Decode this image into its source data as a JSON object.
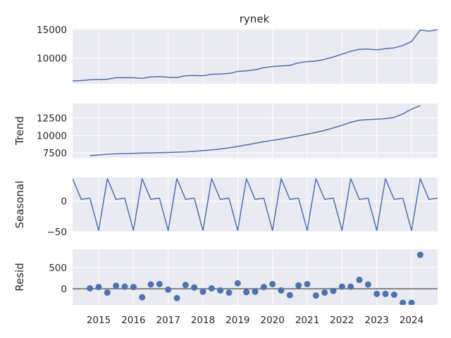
{
  "chart_data": {
    "type": "line",
    "title": "rynek",
    "x_ticks": [
      "2015",
      "2016",
      "2017",
      "2018",
      "2019",
      "2020",
      "2021",
      "2022",
      "2023",
      "2024"
    ],
    "x_range": [
      2014.25,
      2024.75
    ],
    "colors": {
      "line": "#4c72b0",
      "panel_bg": "#eaeaf2",
      "grid": "#ffffff",
      "zero_line": "#000000"
    },
    "panels": [
      {
        "key": "observed",
        "ylabel": "",
        "kind": "line",
        "ylim": [
          5550,
          15100
        ],
        "yticks": [
          10000,
          15000
        ],
        "ytick_labels": [
          "10000",
          "15000"
        ],
        "x": [
          2014.25,
          2014.5,
          2014.75,
          2015.0,
          2015.25,
          2015.5,
          2015.75,
          2016.0,
          2016.25,
          2016.5,
          2016.75,
          2017.0,
          2017.25,
          2017.5,
          2017.75,
          2018.0,
          2018.25,
          2018.5,
          2018.75,
          2019.0,
          2019.25,
          2019.5,
          2019.75,
          2020.0,
          2020.25,
          2020.5,
          2020.75,
          2021.0,
          2021.25,
          2021.5,
          2021.75,
          2022.0,
          2022.25,
          2022.5,
          2022.75,
          2023.0,
          2023.25,
          2023.5,
          2023.75,
          2024.0,
          2024.25,
          2024.5,
          2024.75
        ],
        "y": [
          6050,
          6100,
          6250,
          6300,
          6350,
          6600,
          6620,
          6600,
          6500,
          6750,
          6800,
          6700,
          6650,
          6950,
          7000,
          6950,
          7200,
          7250,
          7350,
          7700,
          7800,
          8000,
          8350,
          8550,
          8650,
          8750,
          9200,
          9400,
          9500,
          9800,
          10200,
          10700,
          11200,
          11550,
          11600,
          11450,
          11650,
          11800,
          12200,
          12900,
          14900,
          14700,
          14950
        ]
      },
      {
        "key": "trend",
        "ylabel": "Trend",
        "kind": "line",
        "ylim": [
          6800,
          14600
        ],
        "yticks": [
          7500,
          10000,
          12500
        ],
        "ytick_labels": [
          "7500",
          "10000",
          "12500"
        ],
        "x": [
          2014.75,
          2015.0,
          2015.25,
          2015.5,
          2015.75,
          2016.0,
          2016.25,
          2016.5,
          2016.75,
          2017.0,
          2017.25,
          2017.5,
          2017.75,
          2018.0,
          2018.25,
          2018.5,
          2018.75,
          2019.0,
          2019.25,
          2019.5,
          2019.75,
          2020.0,
          2020.25,
          2020.5,
          2020.75,
          2021.0,
          2021.25,
          2021.5,
          2021.75,
          2022.0,
          2022.25,
          2022.5,
          2022.75,
          2023.0,
          2023.25,
          2023.5,
          2023.75,
          2024.0,
          2024.25
        ],
        "y": [
          7100,
          7200,
          7300,
          7370,
          7400,
          7430,
          7470,
          7500,
          7530,
          7560,
          7600,
          7640,
          7730,
          7830,
          7930,
          8050,
          8230,
          8420,
          8650,
          8880,
          9100,
          9300,
          9500,
          9720,
          9950,
          10190,
          10450,
          10740,
          11090,
          11480,
          11900,
          12200,
          12300,
          12350,
          12420,
          12600,
          13100,
          13800,
          14300
        ]
      },
      {
        "key": "seasonal",
        "ylabel": "Seasonal",
        "kind": "line",
        "ylim": [
          -50,
          39
        ],
        "yticks": [
          -50,
          0
        ],
        "ytick_labels": [
          "−50",
          "0"
        ],
        "x": [
          2014.25,
          2014.5,
          2014.75,
          2015.0,
          2015.25,
          2015.5,
          2015.75,
          2016.0,
          2016.25,
          2016.5,
          2016.75,
          2017.0,
          2017.25,
          2017.5,
          2017.75,
          2018.0,
          2018.25,
          2018.5,
          2018.75,
          2019.0,
          2019.25,
          2019.5,
          2019.75,
          2020.0,
          2020.25,
          2020.5,
          2020.75,
          2021.0,
          2021.25,
          2021.5,
          2021.75,
          2022.0,
          2022.25,
          2022.5,
          2022.75,
          2023.0,
          2023.25,
          2023.5,
          2023.75,
          2024.0,
          2024.25,
          2024.5,
          2024.75
        ],
        "y": [
          37,
          3,
          5,
          -48,
          37,
          3,
          5,
          -48,
          37,
          3,
          5,
          -48,
          37,
          3,
          5,
          -48,
          37,
          3,
          5,
          -48,
          37,
          3,
          5,
          -48,
          37,
          3,
          5,
          -48,
          37,
          3,
          5,
          -48,
          37,
          3,
          5,
          -48,
          37,
          3,
          5,
          -48,
          37,
          3,
          5
        ]
      },
      {
        "key": "resid",
        "ylabel": "Resid",
        "kind": "scatter",
        "ylim": [
          -380,
          930
        ],
        "yticks": [
          0,
          500
        ],
        "ytick_labels": [
          "0",
          "500"
        ],
        "zero_line": true,
        "x": [
          2014.75,
          2015.0,
          2015.25,
          2015.5,
          2015.75,
          2016.0,
          2016.25,
          2016.5,
          2016.75,
          2017.0,
          2017.25,
          2017.5,
          2017.75,
          2018.0,
          2018.25,
          2018.5,
          2018.75,
          2019.0,
          2019.25,
          2019.5,
          2019.75,
          2020.0,
          2020.25,
          2020.5,
          2020.75,
          2021.0,
          2021.25,
          2021.5,
          2021.75,
          2022.0,
          2022.25,
          2022.5,
          2022.75,
          2023.0,
          2023.25,
          2023.5,
          2023.75,
          2024.0,
          2024.25
        ],
        "y": [
          10,
          40,
          -90,
          70,
          50,
          40,
          -200,
          100,
          110,
          -20,
          -220,
          90,
          30,
          -70,
          10,
          -40,
          -90,
          130,
          -80,
          -70,
          40,
          110,
          -40,
          -150,
          80,
          110,
          -160,
          -90,
          -50,
          50,
          50,
          210,
          100,
          -120,
          -120,
          -140,
          -330,
          -330,
          800
        ]
      }
    ]
  }
}
